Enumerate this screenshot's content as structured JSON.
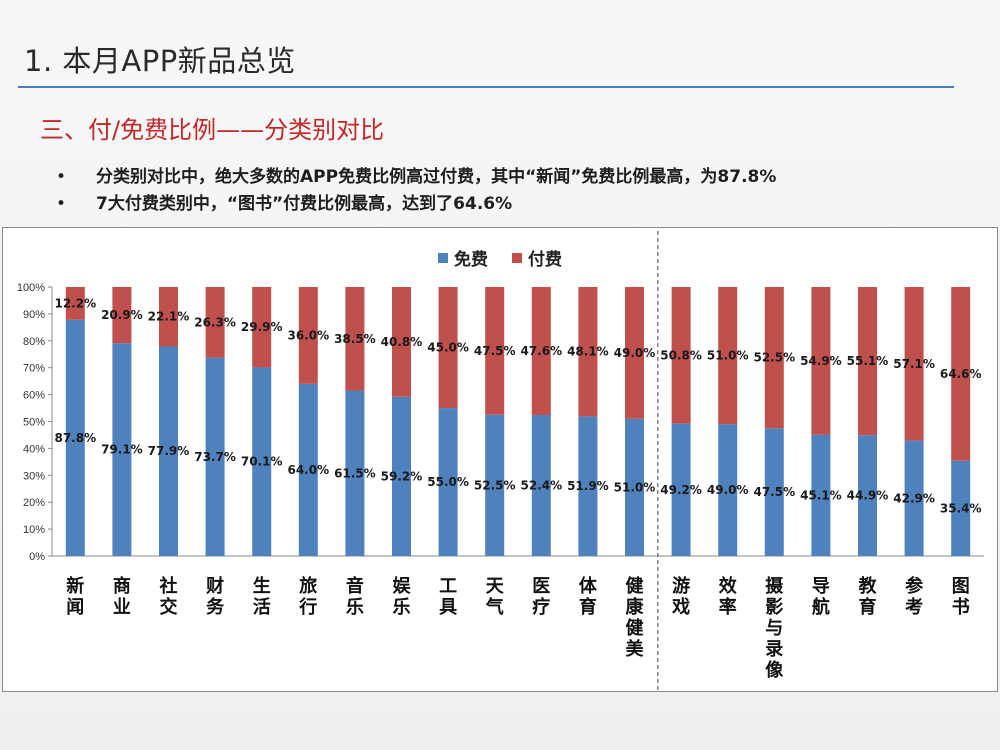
{
  "slide": {
    "title": "1. 本月APP新品总览",
    "subtitle": "三、付/免费比例——分类别对比",
    "bullets": [
      "分类别对比中，绝大多数的APP免费比例高过付费，其中“新闻”免费比例最高，为87.8%",
      "7大付费类别中，“图书”付费比例最高，达到了64.6%"
    ],
    "bullet_marker": "•"
  },
  "chart_data": {
    "type": "bar",
    "stacked": true,
    "percent": true,
    "categories": [
      "新闻",
      "商业",
      "社交",
      "财务",
      "生活",
      "旅行",
      "音乐",
      "娱乐",
      "工具",
      "天气",
      "医疗",
      "体育",
      "健康健美",
      "游戏",
      "效率",
      "摄影与录像",
      "导航",
      "教育",
      "参考",
      "图书"
    ],
    "series": [
      {
        "name": "免费",
        "color": "#4f81bd",
        "values": [
          87.8,
          79.1,
          77.9,
          73.7,
          70.1,
          64.0,
          61.5,
          59.2,
          55.0,
          52.5,
          52.4,
          51.9,
          51.0,
          49.2,
          49.0,
          47.5,
          45.1,
          44.9,
          42.9,
          35.4
        ]
      },
      {
        "name": "付费",
        "color": "#c0504d",
        "values": [
          12.2,
          20.9,
          22.1,
          26.3,
          29.9,
          36.0,
          38.5,
          40.8,
          45.0,
          47.5,
          47.6,
          48.1,
          49.0,
          50.8,
          51.0,
          52.5,
          54.9,
          55.1,
          57.1,
          64.6
        ]
      }
    ],
    "yticks": [
      "0%",
      "10%",
      "20%",
      "30%",
      "40%",
      "50%",
      "60%",
      "70%",
      "80%",
      "90%",
      "100%"
    ],
    "ylim": [
      0,
      100
    ],
    "legend_position": "top-center",
    "divider_after_category": "健康健美",
    "grid": false
  }
}
